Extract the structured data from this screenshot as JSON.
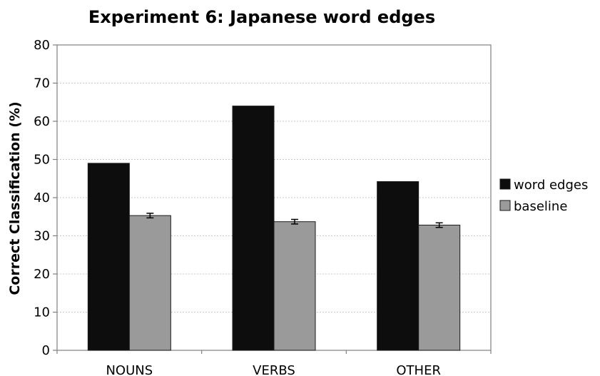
{
  "chart_data": {
    "type": "bar",
    "title": "Experiment 6: Japanese word edges",
    "xlabel": "",
    "ylabel": "Correct Classification (%)",
    "categories": [
      "NOUNS",
      "VERBS",
      "OTHER"
    ],
    "ylim": [
      0,
      80
    ],
    "yticks": [
      "0",
      "10",
      "20",
      "30",
      "40",
      "50",
      "60",
      "70",
      "80"
    ],
    "grid": true,
    "legend_position": "right",
    "series": [
      {
        "name": "word edges",
        "values": [
          49,
          64,
          44.2
        ],
        "color": "#0d0d0d"
      },
      {
        "name": "baseline",
        "values": [
          35.3,
          33.7,
          32.8
        ],
        "error": [
          0.6,
          0.6,
          0.6
        ],
        "color": "#9a9a9a"
      }
    ]
  }
}
